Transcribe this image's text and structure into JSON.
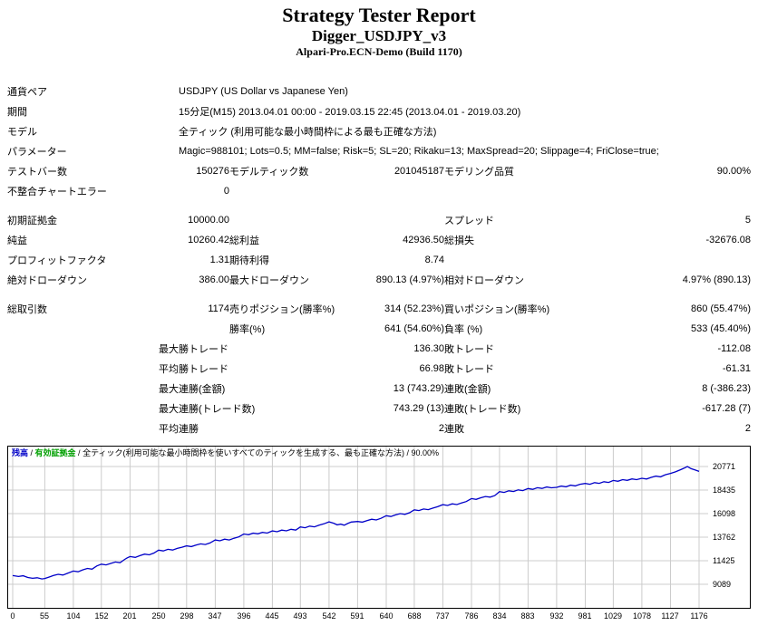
{
  "header": {
    "title": "Strategy Tester Report",
    "strategy": "Digger_USDJPY_v3",
    "server": "Alpari-Pro.ECN-Demo (Build 1170)"
  },
  "report": {
    "rows": [
      {
        "cells": [
          {
            "t": "通貨ペア",
            "a": "l"
          },
          {
            "t": "USDJPY (US Dollar vs Japanese Yen)",
            "a": "l",
            "s": 5
          }
        ]
      },
      {
        "cells": [
          {
            "t": "期間",
            "a": "l"
          },
          {
            "t": "15分足(M15) 2013.04.01 00:00 - 2019.03.15 22:45 (2013.04.01 - 2019.03.20)",
            "a": "l",
            "s": 5
          }
        ]
      },
      {
        "cells": [
          {
            "t": "モデル",
            "a": "l"
          },
          {
            "t": "全ティック (利用可能な最小時間枠による最も正確な方法)",
            "a": "l",
            "s": 5
          }
        ]
      },
      {
        "cells": [
          {
            "t": "パラメーター",
            "a": "l"
          },
          {
            "t": "Magic=988101; Lots=0.5; MM=false; Risk=5; SL=20; Rikaku=13; MaxSpread=20; Slippage=4; FriClose=true;",
            "a": "l",
            "s": 5
          }
        ]
      },
      {
        "cells": [
          {
            "t": "テストバー数",
            "a": "l"
          },
          {
            "t": "150276",
            "a": "r"
          },
          {
            "t": "モデルティック数",
            "a": "l"
          },
          {
            "t": "201045187",
            "a": "r"
          },
          {
            "t": "モデリング品質",
            "a": "l"
          },
          {
            "t": "90.00%",
            "a": "r"
          }
        ]
      },
      {
        "cells": [
          {
            "t": "不整合チャートエラー",
            "a": "l"
          },
          {
            "t": "0",
            "a": "r"
          },
          {
            "t": "",
            "a": "l"
          },
          {
            "t": "",
            "a": "r"
          },
          {
            "t": "",
            "a": "l"
          },
          {
            "t": "",
            "a": "r"
          }
        ]
      },
      {
        "spacer": true
      },
      {
        "cells": [
          {
            "t": "初期証拠金",
            "a": "l"
          },
          {
            "t": "10000.00",
            "a": "r"
          },
          {
            "t": "",
            "a": "l"
          },
          {
            "t": "",
            "a": "r"
          },
          {
            "t": "スプレッド",
            "a": "l"
          },
          {
            "t": "5",
            "a": "r"
          }
        ]
      },
      {
        "cells": [
          {
            "t": "純益",
            "a": "l"
          },
          {
            "t": "10260.42",
            "a": "r"
          },
          {
            "t": "総利益",
            "a": "l"
          },
          {
            "t": "42936.50",
            "a": "r"
          },
          {
            "t": "総損失",
            "a": "l"
          },
          {
            "t": "-32676.08",
            "a": "r"
          }
        ]
      },
      {
        "cells": [
          {
            "t": "プロフィットファクタ",
            "a": "l"
          },
          {
            "t": "1.31",
            "a": "r"
          },
          {
            "t": "期待利得",
            "a": "l"
          },
          {
            "t": "8.74",
            "a": "r"
          },
          {
            "t": "",
            "a": "l"
          },
          {
            "t": "",
            "a": "r"
          }
        ]
      },
      {
        "cells": [
          {
            "t": "絶対ドローダウン",
            "a": "l"
          },
          {
            "t": "386.00",
            "a": "r"
          },
          {
            "t": "最大ドローダウン",
            "a": "l"
          },
          {
            "t": "890.13 (4.97%)",
            "a": "r"
          },
          {
            "t": "相対ドローダウン",
            "a": "l"
          },
          {
            "t": "4.97% (890.13)",
            "a": "r"
          }
        ]
      },
      {
        "spacer": true
      },
      {
        "cells": [
          {
            "t": "総取引数",
            "a": "l"
          },
          {
            "t": "1174",
            "a": "r"
          },
          {
            "t": "売りポジション(勝率%)",
            "a": "l"
          },
          {
            "t": "314 (52.23%)",
            "a": "r"
          },
          {
            "t": "買いポジション(勝率%)",
            "a": "l"
          },
          {
            "t": "860 (55.47%)",
            "a": "r"
          }
        ]
      },
      {
        "cells": [
          {
            "t": "",
            "a": "l"
          },
          {
            "t": "",
            "a": "r"
          },
          {
            "t": "勝率(%)",
            "a": "l"
          },
          {
            "t": "641 (54.60%)",
            "a": "r"
          },
          {
            "t": "負率 (%)",
            "a": "l"
          },
          {
            "t": "533 (45.40%)",
            "a": "r"
          }
        ]
      },
      {
        "cells": [
          {
            "t": "最大",
            "a": "r"
          },
          {
            "t": "勝トレード",
            "a": "l",
            "s": 2
          },
          {
            "t": "136.30",
            "a": "r"
          },
          {
            "t": "敗トレード",
            "a": "l"
          },
          {
            "t": "-112.08",
            "a": "r"
          }
        ]
      },
      {
        "cells": [
          {
            "t": "平均",
            "a": "r"
          },
          {
            "t": "勝トレード",
            "a": "l",
            "s": 2
          },
          {
            "t": "66.98",
            "a": "r"
          },
          {
            "t": "敗トレード",
            "a": "l"
          },
          {
            "t": "-61.31",
            "a": "r"
          }
        ]
      },
      {
        "cells": [
          {
            "t": "最大",
            "a": "r"
          },
          {
            "t": "連勝(金額)",
            "a": "l",
            "s": 2
          },
          {
            "t": "13 (743.29)",
            "a": "r"
          },
          {
            "t": "連敗(金額)",
            "a": "l"
          },
          {
            "t": "8 (-386.23)",
            "a": "r"
          }
        ]
      },
      {
        "cells": [
          {
            "t": "最大",
            "a": "r"
          },
          {
            "t": "連勝(トレード数)",
            "a": "l",
            "s": 2
          },
          {
            "t": "743.29 (13)",
            "a": "r"
          },
          {
            "t": "連敗(トレード数)",
            "a": "l"
          },
          {
            "t": "-617.28 (7)",
            "a": "r"
          }
        ]
      },
      {
        "cells": [
          {
            "t": "平均",
            "a": "r"
          },
          {
            "t": "連勝",
            "a": "l",
            "s": 2
          },
          {
            "t": "2",
            "a": "r"
          },
          {
            "t": "連敗",
            "a": "l"
          },
          {
            "t": "2",
            "a": "r"
          }
        ]
      }
    ]
  },
  "chart_data": {
    "type": "line",
    "title": "",
    "xlabel": "",
    "ylabel": "",
    "grid": true,
    "legend_position": "top-left",
    "legend": {
      "balance": "残高",
      "equity": "有効証拠金",
      "separator": " / ",
      "model_text": "全ティック(利用可能な最小時間枠を使いすべてのティックを生成する、最も正確な方法) / 90.00%",
      "balance_color": "#0000c8",
      "equity_color": "#00a000"
    },
    "colors": {
      "line": "#0000c8",
      "grid": "#cccccc",
      "border": "#000000"
    },
    "y_ticks": [
      20771,
      18435,
      16098,
      13762,
      11425,
      9089
    ],
    "x_ticks": [
      0,
      55,
      104,
      152,
      201,
      250,
      298,
      347,
      396,
      445,
      493,
      542,
      591,
      640,
      688,
      737,
      786,
      834,
      883,
      932,
      981,
      1029,
      1078,
      1127,
      1176
    ],
    "x_range": [
      0,
      1176
    ],
    "y_range": [
      9089,
      20771
    ],
    "series": [
      {
        "name": "残高",
        "color": "#0000c8",
        "points": [
          [
            0,
            9950
          ],
          [
            10,
            9860
          ],
          [
            18,
            9930
          ],
          [
            26,
            9760
          ],
          [
            34,
            9680
          ],
          [
            42,
            9740
          ],
          [
            50,
            9620
          ],
          [
            55,
            9660
          ],
          [
            62,
            9800
          ],
          [
            70,
            9960
          ],
          [
            78,
            10080
          ],
          [
            86,
            10010
          ],
          [
            94,
            10180
          ],
          [
            104,
            10400
          ],
          [
            112,
            10330
          ],
          [
            120,
            10520
          ],
          [
            128,
            10660
          ],
          [
            136,
            10590
          ],
          [
            144,
            10900
          ],
          [
            152,
            11080
          ],
          [
            160,
            11010
          ],
          [
            168,
            11160
          ],
          [
            176,
            11300
          ],
          [
            184,
            11230
          ],
          [
            192,
            11560
          ],
          [
            196,
            11700
          ],
          [
            201,
            11840
          ],
          [
            210,
            11760
          ],
          [
            218,
            11930
          ],
          [
            226,
            12080
          ],
          [
            234,
            12010
          ],
          [
            242,
            12190
          ],
          [
            250,
            12480
          ],
          [
            258,
            12400
          ],
          [
            266,
            12560
          ],
          [
            274,
            12490
          ],
          [
            282,
            12650
          ],
          [
            290,
            12760
          ],
          [
            298,
            12900
          ],
          [
            306,
            12830
          ],
          [
            314,
            12980
          ],
          [
            322,
            13100
          ],
          [
            330,
            13030
          ],
          [
            338,
            13190
          ],
          [
            347,
            13480
          ],
          [
            355,
            13400
          ],
          [
            363,
            13560
          ],
          [
            371,
            13480
          ],
          [
            379,
            13650
          ],
          [
            387,
            13780
          ],
          [
            396,
            14080
          ],
          [
            404,
            14000
          ],
          [
            412,
            14160
          ],
          [
            420,
            14090
          ],
          [
            428,
            14240
          ],
          [
            436,
            14170
          ],
          [
            445,
            14380
          ],
          [
            453,
            14300
          ],
          [
            461,
            14460
          ],
          [
            469,
            14390
          ],
          [
            477,
            14540
          ],
          [
            485,
            14460
          ],
          [
            493,
            14780
          ],
          [
            501,
            14700
          ],
          [
            509,
            14860
          ],
          [
            517,
            14790
          ],
          [
            525,
            14950
          ],
          [
            533,
            15080
          ],
          [
            542,
            15280
          ],
          [
            550,
            15150
          ],
          [
            556,
            14980
          ],
          [
            562,
            15060
          ],
          [
            568,
            14950
          ],
          [
            574,
            15120
          ],
          [
            580,
            15260
          ],
          [
            591,
            15320
          ],
          [
            599,
            15250
          ],
          [
            607,
            15410
          ],
          [
            615,
            15540
          ],
          [
            623,
            15470
          ],
          [
            631,
            15630
          ],
          [
            640,
            15890
          ],
          [
            648,
            15810
          ],
          [
            656,
            15970
          ],
          [
            664,
            16100
          ],
          [
            672,
            16030
          ],
          [
            680,
            16190
          ],
          [
            688,
            16480
          ],
          [
            696,
            16400
          ],
          [
            704,
            16560
          ],
          [
            712,
            16490
          ],
          [
            720,
            16650
          ],
          [
            728,
            16780
          ],
          [
            737,
            16990
          ],
          [
            745,
            16910
          ],
          [
            753,
            17070
          ],
          [
            761,
            17000
          ],
          [
            769,
            17160
          ],
          [
            777,
            17290
          ],
          [
            786,
            17590
          ],
          [
            794,
            17510
          ],
          [
            802,
            17670
          ],
          [
            810,
            17800
          ],
          [
            818,
            17730
          ],
          [
            826,
            17890
          ],
          [
            834,
            18280
          ],
          [
            842,
            18200
          ],
          [
            850,
            18360
          ],
          [
            858,
            18290
          ],
          [
            866,
            18450
          ],
          [
            874,
            18380
          ],
          [
            883,
            18590
          ],
          [
            891,
            18510
          ],
          [
            899,
            18670
          ],
          [
            907,
            18600
          ],
          [
            915,
            18740
          ],
          [
            923,
            18660
          ],
          [
            932,
            18700
          ],
          [
            940,
            18830
          ],
          [
            948,
            18760
          ],
          [
            956,
            18920
          ],
          [
            964,
            18850
          ],
          [
            972,
            19010
          ],
          [
            981,
            19090
          ],
          [
            989,
            19010
          ],
          [
            997,
            19170
          ],
          [
            1005,
            19100
          ],
          [
            1013,
            19260
          ],
          [
            1021,
            19190
          ],
          [
            1029,
            19390
          ],
          [
            1037,
            19310
          ],
          [
            1045,
            19470
          ],
          [
            1053,
            19400
          ],
          [
            1061,
            19540
          ],
          [
            1069,
            19470
          ],
          [
            1078,
            19600
          ],
          [
            1086,
            19530
          ],
          [
            1094,
            19690
          ],
          [
            1102,
            19820
          ],
          [
            1110,
            19750
          ],
          [
            1118,
            19950
          ],
          [
            1127,
            20090
          ],
          [
            1135,
            20230
          ],
          [
            1143,
            20420
          ],
          [
            1150,
            20600
          ],
          [
            1156,
            20771
          ],
          [
            1162,
            20560
          ],
          [
            1169,
            20430
          ],
          [
            1176,
            20290
          ]
        ]
      }
    ]
  }
}
